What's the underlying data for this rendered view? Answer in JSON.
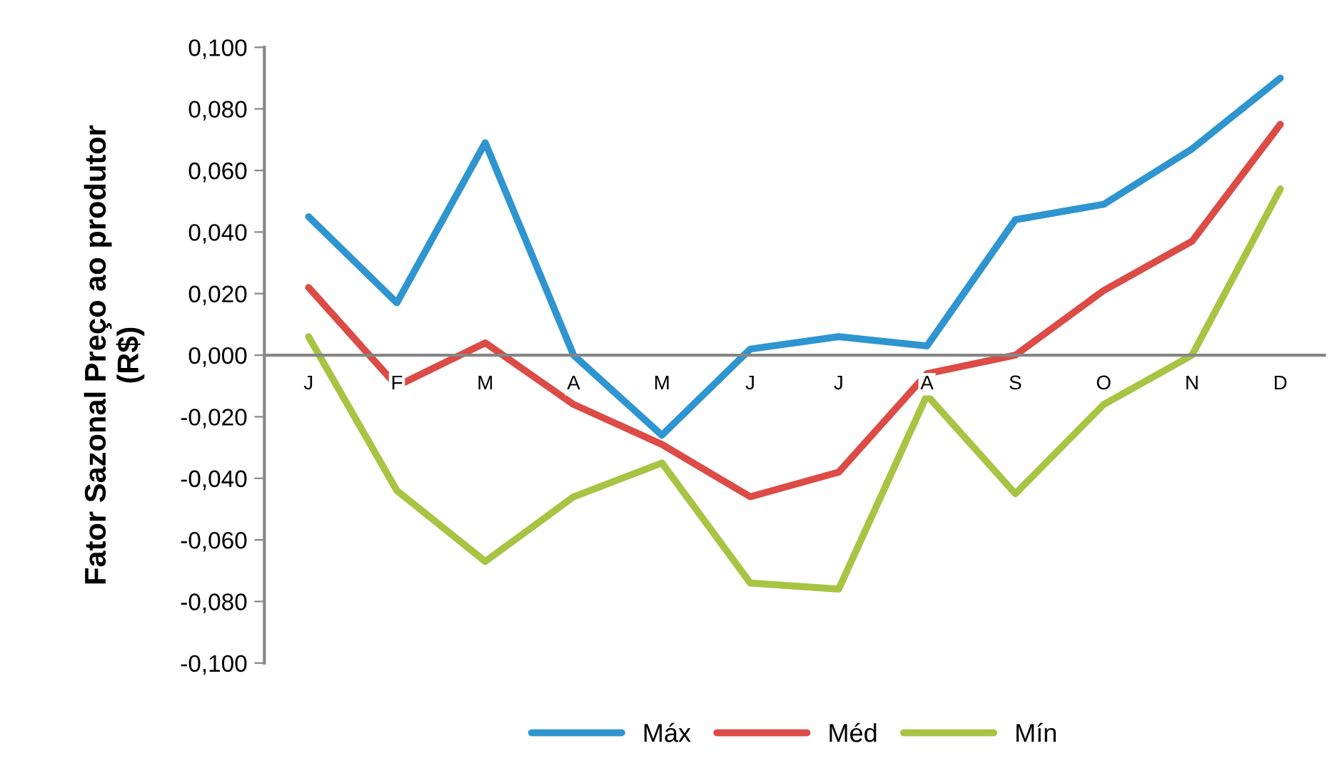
{
  "chart_data": {
    "type": "line",
    "ylabel": "Fator Sazonal Preço ao produtor\n(R$)",
    "categories": [
      "J",
      "F",
      "M",
      "A",
      "M",
      "J",
      "J",
      "A",
      "S",
      "O",
      "N",
      "D"
    ],
    "series": [
      {
        "name": "Máx",
        "color": "#2e95d0",
        "values": [
          0.045,
          0.017,
          0.069,
          0.0,
          -0.026,
          0.002,
          0.006,
          0.003,
          0.044,
          0.049,
          0.067,
          0.09
        ]
      },
      {
        "name": "Méd",
        "color": "#dc4b45",
        "values": [
          0.022,
          -0.01,
          0.004,
          -0.016,
          -0.029,
          -0.046,
          -0.038,
          -0.006,
          0.0,
          0.021,
          0.037,
          0.075
        ]
      },
      {
        "name": "Mín",
        "color": "#a7c443",
        "values": [
          0.006,
          -0.044,
          -0.067,
          -0.046,
          -0.035,
          -0.074,
          -0.076,
          -0.013,
          -0.045,
          -0.016,
          0.0,
          0.054
        ]
      }
    ],
    "ylim": [
      -0.1,
      0.1
    ],
    "yticks": [
      {
        "value": -0.1,
        "label": "-0,100"
      },
      {
        "value": -0.08,
        "label": "-0,080"
      },
      {
        "value": -0.06,
        "label": "-0,060"
      },
      {
        "value": -0.04,
        "label": "-0,040"
      },
      {
        "value": -0.02,
        "label": "-0,020"
      },
      {
        "value": 0,
        "label": "0,000"
      },
      {
        "value": 0.02,
        "label": "0,020"
      },
      {
        "value": 0.04,
        "label": "0,040"
      },
      {
        "value": 0.06,
        "label": "0,060"
      },
      {
        "value": 0.08,
        "label": "0,080"
      },
      {
        "value": 0.1,
        "label": "0,100"
      }
    ],
    "grid": false,
    "legend": "bottom",
    "marker": "none",
    "line_style": "solid"
  }
}
